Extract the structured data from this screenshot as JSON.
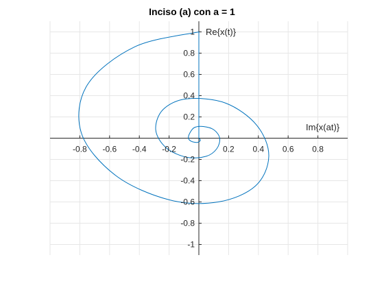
{
  "chart_data": {
    "type": "line",
    "title": "Inciso (a) con a = 1",
    "xlabel": "Im{x(at)}",
    "ylabel": "Re{x(t)}",
    "xlim": [
      -1,
      1
    ],
    "ylim": [
      -1.1,
      1.1
    ],
    "xticks": [
      -0.8,
      -0.6,
      -0.4,
      -0.2,
      0.2,
      0.4,
      0.6,
      0.8
    ],
    "xtick_labels": [
      "-0.8",
      "-0.6",
      "-0.4",
      "-0.2",
      "0.2",
      "0.4",
      "0.6",
      "0.8"
    ],
    "yticks": [
      -1,
      -0.8,
      -0.6,
      -0.4,
      -0.2,
      0.2,
      0.4,
      0.6,
      0.8,
      1
    ],
    "ytick_labels": [
      "-1",
      "-0.8",
      "-0.6",
      "-0.4",
      "-0.2",
      "0.2",
      "0.4",
      "0.6",
      "0.8",
      "1"
    ],
    "grid": true,
    "axis_location": "origin",
    "line_color": "#0072BD",
    "series": [
      {
        "x": [
          0.0,
          -0.43,
          -0.75,
          -0.79,
          -0.56,
          -0.2,
          0.13,
          0.38,
          0.47,
          0.39,
          0.18,
          -0.08,
          -0.24,
          -0.29,
          -0.22,
          -0.08,
          0.05,
          0.12,
          0.14,
          0.1,
          0.03,
          -0.03,
          -0.06,
          -0.07,
          -0.05,
          -0.01,
          0.01,
          0.0
        ],
        "y": [
          1.0,
          0.86,
          0.5,
          0.05,
          -0.35,
          -0.58,
          -0.6,
          -0.45,
          -0.17,
          0.12,
          0.33,
          0.37,
          0.27,
          0.08,
          -0.09,
          -0.18,
          -0.17,
          -0.1,
          0.0,
          0.08,
          0.11,
          0.1,
          0.05,
          0.0,
          -0.03,
          -0.04,
          -0.02,
          0.0
        ]
      },
      {
        "x": [
          0.0,
          0.0
        ],
        "y": [
          0.0,
          1.0
        ]
      }
    ]
  }
}
